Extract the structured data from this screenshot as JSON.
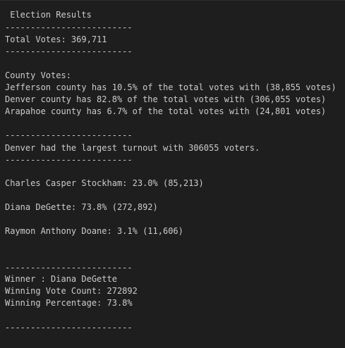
{
  "terminal": {
    "title": " Election Results",
    "separator": "-------------------------",
    "total_votes": "Total Votes: 369,711",
    "county_header": "County Votes:",
    "counties": [
      "Jefferson county has 10.5% of the total votes with (38,855 votes)",
      "Denver county has 82.8% of the total votes with (306,055 votes)",
      "Arapahoe county has 6.7% of the total votes with (24,801 votes)"
    ],
    "largest_turnout": "Denver had the largest turnout with 306055 voters.",
    "candidates": [
      "Charles Casper Stockham: 23.0% (85,213)",
      "Diana DeGette: 73.8% (272,892)",
      "Raymon Anthony Doane: 3.1% (11,606)"
    ],
    "winner": "Winner : Diana DeGette",
    "winning_vote_count": "Winning Vote Count: 272892",
    "winning_percentage": "Winning Percentage: 73.8%"
  }
}
